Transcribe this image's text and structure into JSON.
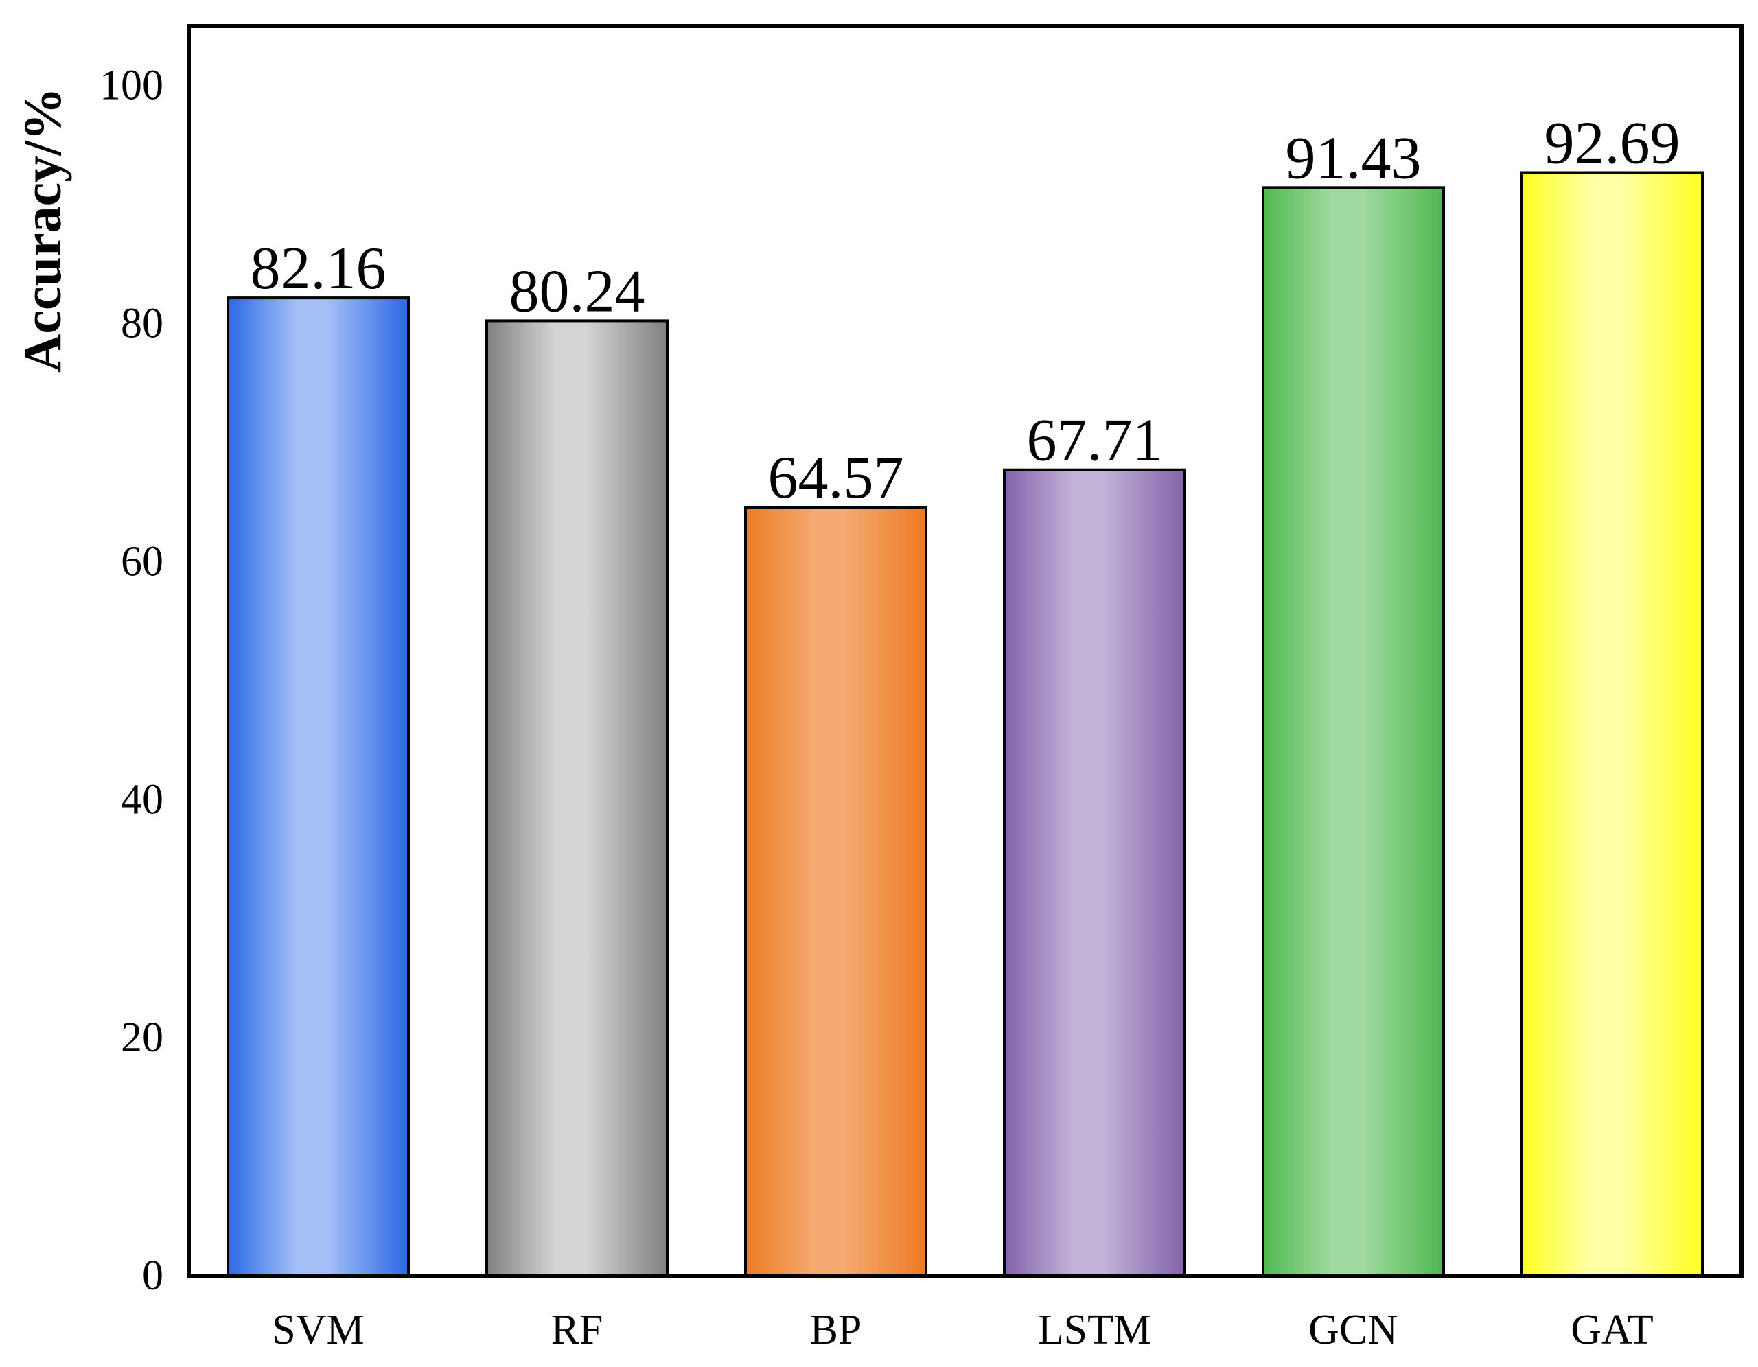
{
  "chart_data": {
    "type": "bar",
    "categories": [
      "SVM",
      "RF",
      "BP",
      "LSTM",
      "GCN",
      "GAT"
    ],
    "values": [
      82.16,
      80.24,
      64.57,
      67.71,
      91.43,
      92.69
    ],
    "value_labels": [
      "82.16",
      "80.24",
      "64.57",
      "67.71",
      "91.43",
      "92.69"
    ],
    "title": "",
    "xlabel": "",
    "ylabel": "Accuracy/%",
    "ylim": [
      0,
      105
    ],
    "yticks": [
      0,
      20,
      40,
      60,
      80,
      100
    ],
    "ytick_labels": [
      "0",
      "20",
      "40",
      "60",
      "80",
      "100"
    ],
    "grid": false,
    "legend": "none",
    "bar_colors": [
      {
        "edge": "#2A68E6",
        "center": "#A4C0F6"
      },
      {
        "edge": "#808080",
        "center": "#D4D4D4"
      },
      {
        "edge": "#EC7A22",
        "center": "#F4AA70"
      },
      {
        "edge": "#8262AA",
        "center": "#C2B2D8"
      },
      {
        "edge": "#4FB84F",
        "center": "#A0DAA0"
      },
      {
        "edge": "#FFFF22",
        "center": "#FFFFA4"
      }
    ]
  }
}
